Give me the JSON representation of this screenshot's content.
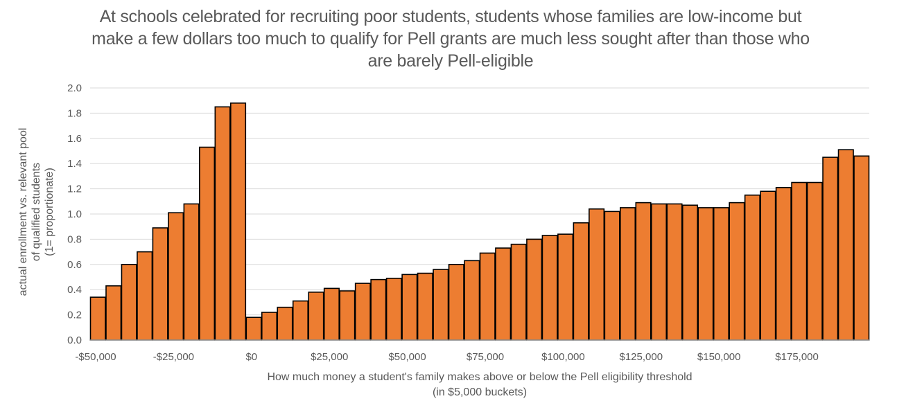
{
  "chart_data": {
    "type": "bar",
    "title": "At schools celebrated for recruiting poor students, students whose families are low-income but make a few dollars too much to qualify for Pell grants are much less sought after than those who are barely Pell-eligible",
    "ylabel_lines": [
      "actual enrollment vs. relevant pool",
      "of qualified students",
      "(1= proportionate)"
    ],
    "xlabel_lines": [
      "How much money a student's family makes above or below the Pell eligibility threshold",
      "(in $5,000 buckets)"
    ],
    "ylim": [
      0,
      2.0
    ],
    "yticks": [
      "0.0",
      "0.2",
      "0.4",
      "0.6",
      "0.8",
      "1.0",
      "1.2",
      "1.4",
      "1.6",
      "1.8",
      "2.0"
    ],
    "xticks": [
      "-$50,000",
      "-$25,000",
      "$0",
      "$25,000",
      "$50,000",
      "$75,000",
      "$100,000",
      "$125,000",
      "$150,000",
      "$175,000"
    ],
    "x_start": -50000,
    "bucket_width": 5000,
    "grid": true,
    "bar_color": "#ED7D31",
    "bar_edge_color": "#000000",
    "values": [
      0.34,
      0.43,
      0.6,
      0.7,
      0.89,
      1.01,
      1.08,
      1.53,
      1.85,
      1.88,
      0.18,
      0.22,
      0.26,
      0.31,
      0.38,
      0.41,
      0.39,
      0.45,
      0.48,
      0.49,
      0.52,
      0.53,
      0.56,
      0.6,
      0.63,
      0.69,
      0.73,
      0.76,
      0.8,
      0.83,
      0.84,
      0.93,
      1.04,
      1.02,
      1.05,
      1.09,
      1.08,
      1.08,
      1.07,
      1.05,
      1.05,
      1.09,
      1.15,
      1.18,
      1.21,
      1.25,
      1.25,
      1.45,
      1.51,
      1.46
    ]
  }
}
